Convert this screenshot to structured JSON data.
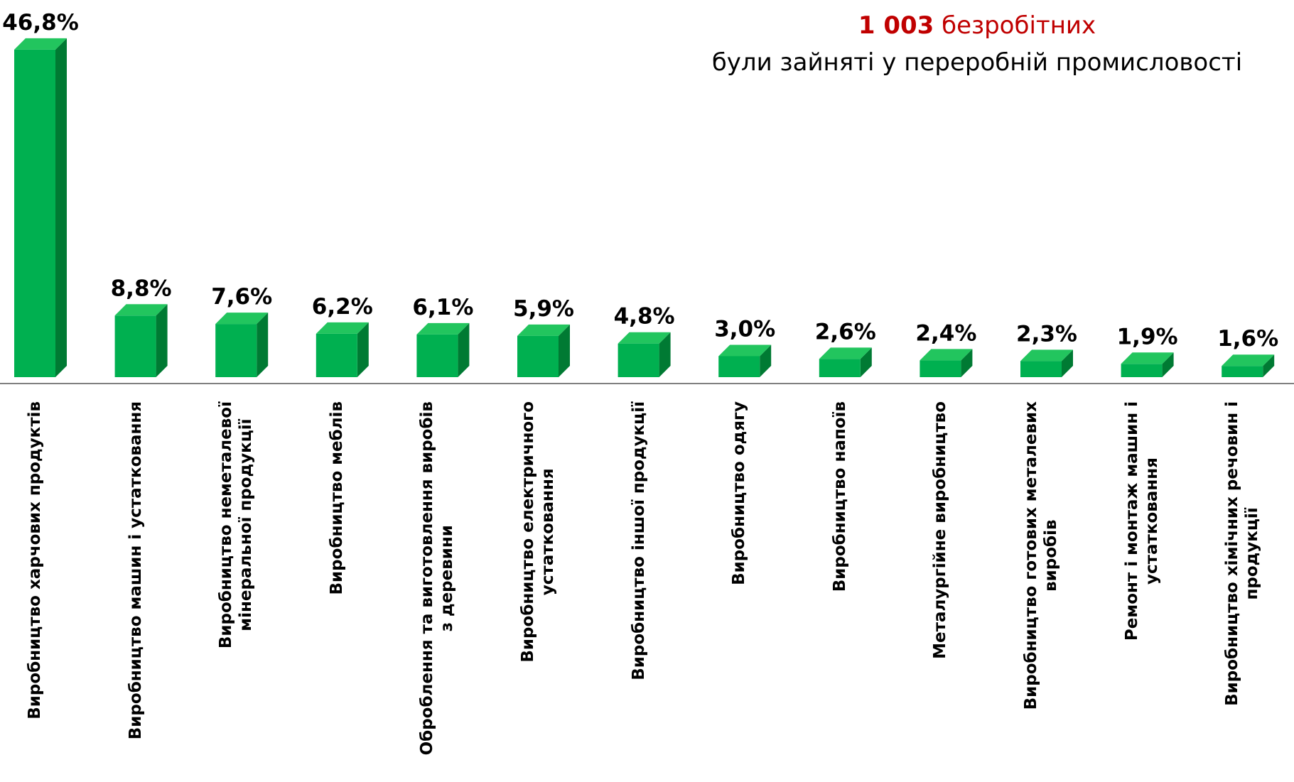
{
  "chart_data": {
    "type": "bar3d",
    "title_number": "1 003",
    "title_suffix": "безробітних",
    "subtitle": "були зайняті у переробній промисловості",
    "categories": [
      "Виробництво харчових продуктів",
      "Виробництво машин і устатковання",
      "Виробництво неметалевої\nмінеральної продукції",
      "Виробництво меблів",
      "Оброблення та виготовлення виробів\nз деревини",
      "Виробництво електричного\nустатковання",
      "Виробництво іншої продукції",
      "Виробництво одягу",
      "Виробництво напоїв",
      "Металургійне виробництво",
      "Виробництво готових металевих\nвиробів",
      "Ремонт і монтаж машин і\nустатковання",
      "Виробництво хімічних речовин і\nпродукції"
    ],
    "values": [
      46.8,
      8.8,
      7.6,
      6.2,
      6.1,
      5.9,
      4.8,
      3.0,
      2.6,
      2.4,
      2.3,
      1.9,
      1.6
    ],
    "value_labels": [
      "46,8%",
      "8,8%",
      "7,6%",
      "6,2%",
      "6,1%",
      "5,9%",
      "4,8%",
      "3,0%",
      "2,6%",
      "2,4%",
      "2,3%",
      "1,9%",
      "1,6%"
    ],
    "color": "#00b050",
    "ylim": [
      0,
      47.5
    ]
  }
}
